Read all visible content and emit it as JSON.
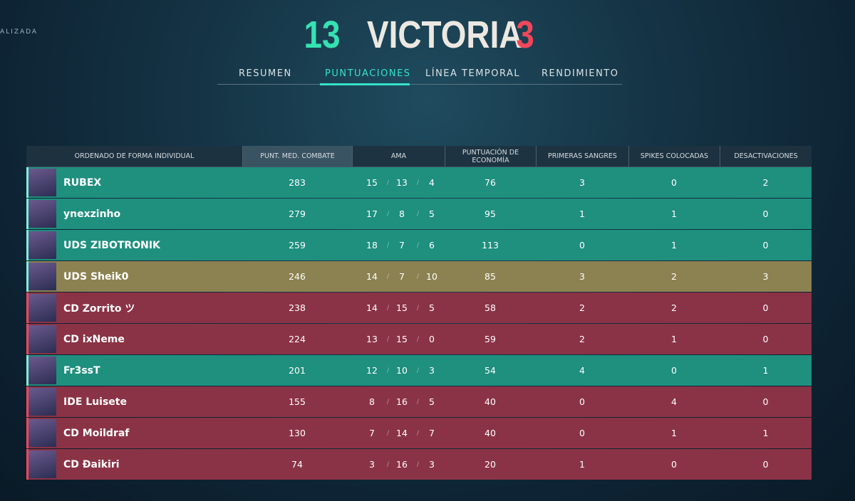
{
  "header": {
    "corner": "ALIZADA",
    "score_left": "13",
    "result": "VICTORIA",
    "score_right": "3"
  },
  "tabs": [
    {
      "label": "RESUMEN",
      "active": false
    },
    {
      "label": "PUNTUACIONES",
      "active": true
    },
    {
      "label": "LÍNEA TEMPORAL",
      "active": false
    },
    {
      "label": "RENDIMIENTO",
      "active": false
    }
  ],
  "table": {
    "columns": [
      "ORDENADO DE FORMA INDIVIDUAL",
      "PUNT. MED. COMBATE",
      "AMA",
      "PUNTUACIÓN DE ECONOMÍA",
      "PRIMERAS SANGRES",
      "SPIKES COLOCADAS",
      "DESACTIVACIONES"
    ],
    "rows": [
      {
        "name": "RUBEX",
        "acs": 283,
        "k": 15,
        "d": 13,
        "a": 4,
        "econ": 76,
        "fb": 3,
        "plants": 0,
        "defuses": 2,
        "color": "#1f8f7e"
      },
      {
        "name": "ynexzinho",
        "acs": 279,
        "k": 17,
        "d": 8,
        "a": 5,
        "econ": 95,
        "fb": 1,
        "plants": 1,
        "defuses": 0,
        "color": "#1f8f7e"
      },
      {
        "name": "UDS ZIBOTRONIK",
        "acs": 259,
        "k": 18,
        "d": 7,
        "a": 6,
        "econ": 113,
        "fb": 0,
        "plants": 1,
        "defuses": 0,
        "color": "#1f8f7e"
      },
      {
        "name": "UDS Sheik0",
        "acs": 246,
        "k": 14,
        "d": 7,
        "a": 10,
        "econ": 85,
        "fb": 3,
        "plants": 2,
        "defuses": 3,
        "color": "#8c8251"
      },
      {
        "name": "CD Zorrito ツ",
        "acs": 238,
        "k": 14,
        "d": 15,
        "a": 5,
        "econ": 58,
        "fb": 2,
        "plants": 2,
        "defuses": 0,
        "color": "#8b3346"
      },
      {
        "name": "CD ixNeme",
        "acs": 224,
        "k": 13,
        "d": 15,
        "a": 0,
        "econ": 59,
        "fb": 2,
        "plants": 1,
        "defuses": 0,
        "color": "#8b3346"
      },
      {
        "name": "Fr3ssT",
        "acs": 201,
        "k": 12,
        "d": 10,
        "a": 3,
        "econ": 54,
        "fb": 4,
        "plants": 0,
        "defuses": 1,
        "color": "#1f8f7e"
      },
      {
        "name": "IDE Luisete",
        "acs": 155,
        "k": 8,
        "d": 16,
        "a": 5,
        "econ": 40,
        "fb": 0,
        "plants": 4,
        "defuses": 0,
        "color": "#8b3346"
      },
      {
        "name": "CD Moildraf",
        "acs": 130,
        "k": 7,
        "d": 14,
        "a": 7,
        "econ": 40,
        "fb": 0,
        "plants": 1,
        "defuses": 1,
        "color": "#8b3346"
      },
      {
        "name": "CD Ðaikiri",
        "acs": 74,
        "k": 3,
        "d": 16,
        "a": 3,
        "econ": 20,
        "fb": 1,
        "plants": 0,
        "defuses": 0,
        "color": "#8b3346"
      }
    ]
  }
}
